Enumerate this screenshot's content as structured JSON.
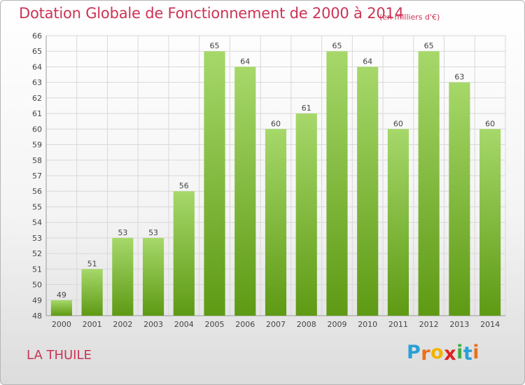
{
  "title": "Dotation Globale de Fonctionnement de 2000 à 2014",
  "subtitle": "(en milliers d'€)",
  "commune": "LA THUILE",
  "logo": {
    "letters": [
      "P",
      "r",
      "o",
      "x",
      "i",
      "t",
      "i"
    ],
    "colors": [
      "#2a9fd6",
      "#e8711c",
      "#f0b400",
      "#e02020",
      "#3fae3f",
      "#2a9fd6",
      "#e8711c"
    ]
  },
  "colors": {
    "bar_top": "#a6d86a",
    "bar_bottom": "#5e9a14",
    "title": "#cc3355"
  },
  "chart_data": {
    "type": "bar",
    "categories": [
      "2000",
      "2001",
      "2002",
      "2003",
      "2004",
      "2005",
      "2006",
      "2007",
      "2008",
      "2009",
      "2010",
      "2011",
      "2012",
      "2013",
      "2014"
    ],
    "values": [
      49,
      51,
      53,
      53,
      56,
      65,
      64,
      60,
      61,
      65,
      64,
      60,
      65,
      63,
      60
    ],
    "ylim": [
      48,
      66
    ],
    "yticks": [
      48,
      49,
      50,
      51,
      52,
      53,
      54,
      55,
      56,
      57,
      58,
      59,
      60,
      61,
      62,
      63,
      64,
      65,
      66
    ],
    "grid": true,
    "data_labels": true
  }
}
